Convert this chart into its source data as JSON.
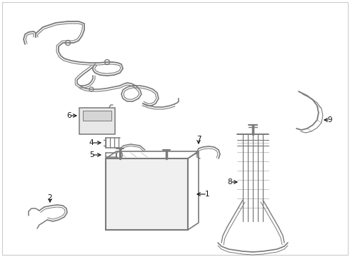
{
  "background_color": "#ffffff",
  "line_color": "#7a7a7a",
  "label_color": "#111111",
  "fig_width": 4.9,
  "fig_height": 3.6,
  "dpi": 100
}
